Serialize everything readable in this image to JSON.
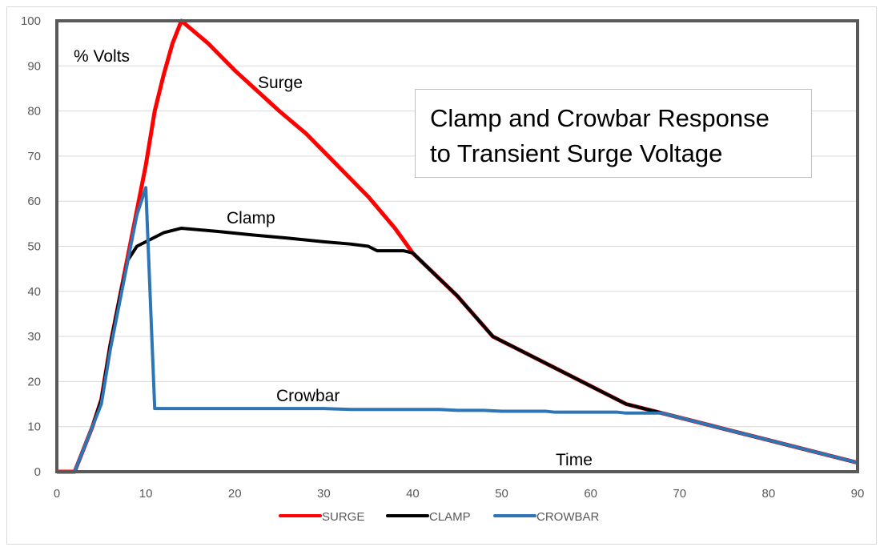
{
  "chart_data": {
    "type": "line",
    "title": "Clamp and Crowbar Response to Transient Surge Voltage",
    "title_lines": [
      "Clamp and Crowbar Response",
      "to Transient Surge Voltage"
    ],
    "xlabel": "Time",
    "ylabel": "% Volts",
    "xlim": [
      0,
      90
    ],
    "ylim": [
      0,
      100
    ],
    "xticks": [
      0,
      10,
      20,
      30,
      40,
      50,
      60,
      70,
      80,
      90
    ],
    "yticks": [
      0,
      10,
      20,
      30,
      40,
      50,
      60,
      70,
      80,
      90,
      100
    ],
    "grid": "horizontal",
    "legend": "bottom",
    "annotations": [
      "Surge",
      "Clamp",
      "Crowbar"
    ],
    "series": [
      {
        "name": "SURGE",
        "color": "#ff0000",
        "points": [
          [
            0,
            0
          ],
          [
            2,
            0
          ],
          [
            4,
            10
          ],
          [
            5,
            16
          ],
          [
            6,
            28
          ],
          [
            7,
            38
          ],
          [
            8,
            48
          ],
          [
            9,
            58
          ],
          [
            10,
            68
          ],
          [
            11,
            80
          ],
          [
            12,
            88
          ],
          [
            13,
            95
          ],
          [
            14,
            100
          ],
          [
            17,
            95
          ],
          [
            20,
            89
          ],
          [
            25,
            80
          ],
          [
            28,
            75
          ],
          [
            30,
            71
          ],
          [
            35,
            61
          ],
          [
            38,
            54
          ],
          [
            40,
            48.5
          ],
          [
            45,
            39
          ],
          [
            49,
            30
          ],
          [
            55,
            24
          ],
          [
            60,
            19
          ],
          [
            64,
            15
          ],
          [
            68,
            13
          ],
          [
            70,
            12
          ],
          [
            75,
            9.5
          ],
          [
            80,
            7
          ],
          [
            85,
            4.5
          ],
          [
            90,
            2
          ]
        ]
      },
      {
        "name": "CLAMP",
        "color": "#000000",
        "points": [
          [
            0,
            0
          ],
          [
            2,
            0
          ],
          [
            4,
            10
          ],
          [
            5,
            16
          ],
          [
            6,
            28
          ],
          [
            7,
            38
          ],
          [
            8,
            47
          ],
          [
            9,
            50
          ],
          [
            10,
            51
          ],
          [
            12,
            53
          ],
          [
            14,
            54
          ],
          [
            18,
            53.3
          ],
          [
            22,
            52.5
          ],
          [
            26,
            51.8
          ],
          [
            30,
            51
          ],
          [
            33,
            50.5
          ],
          [
            35,
            50
          ],
          [
            36,
            49
          ],
          [
            39,
            49
          ],
          [
            40,
            48.5
          ],
          [
            45,
            39
          ],
          [
            49,
            30
          ],
          [
            55,
            24
          ],
          [
            60,
            19
          ],
          [
            64,
            15
          ],
          [
            68,
            13
          ],
          [
            70,
            12
          ],
          [
            75,
            9.5
          ],
          [
            80,
            7
          ],
          [
            85,
            4.5
          ],
          [
            90,
            2
          ]
        ]
      },
      {
        "name": "CROWBAR",
        "color": "#2e75b6",
        "points": [
          [
            0,
            0
          ],
          [
            2,
            0
          ],
          [
            4,
            10
          ],
          [
            5,
            15
          ],
          [
            6,
            27
          ],
          [
            7,
            37
          ],
          [
            8,
            47
          ],
          [
            9,
            57
          ],
          [
            10,
            63
          ],
          [
            11,
            14
          ],
          [
            30,
            14
          ],
          [
            33,
            13.8
          ],
          [
            43,
            13.8
          ],
          [
            45,
            13.6
          ],
          [
            48,
            13.6
          ],
          [
            50,
            13.4
          ],
          [
            55,
            13.4
          ],
          [
            56,
            13.2
          ],
          [
            63,
            13.2
          ],
          [
            64,
            13
          ],
          [
            68,
            13
          ],
          [
            70,
            12
          ],
          [
            75,
            9.5
          ],
          [
            80,
            7
          ],
          [
            85,
            4.5
          ],
          [
            90,
            2
          ]
        ]
      }
    ]
  }
}
